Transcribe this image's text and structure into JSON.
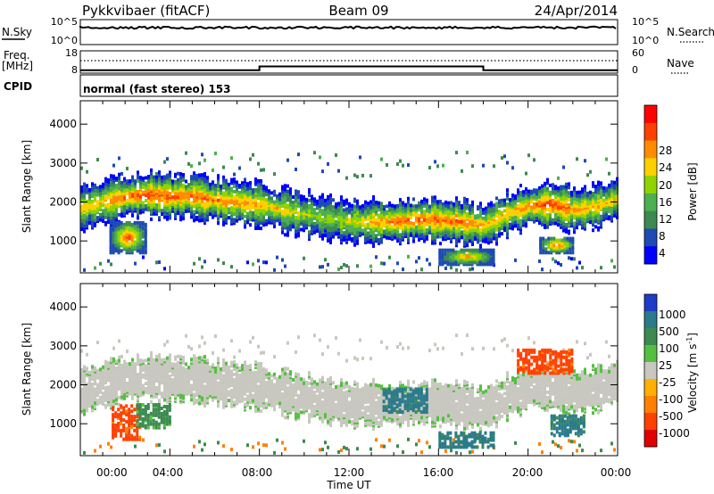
{
  "header": {
    "station": "Pykkvibaer (fitACF)",
    "beam": "Beam 09",
    "date": "24/Apr/2014"
  },
  "noise_panel": {
    "left_label": "N.Sky",
    "left_ticks": [
      "10^5",
      "10^0"
    ],
    "right_ticks": [
      "10^5",
      "10^0"
    ],
    "right_label": "N.Search"
  },
  "freq_panel": {
    "label_top": "Freq.",
    "label_unit": "[MHz]",
    "left_ticks": [
      "18",
      "8"
    ],
    "right_ticks": [
      "60",
      "0"
    ],
    "right_label": "Nave"
  },
  "cpid_panel": {
    "label": "CPID",
    "text": "normal (fast stereo) 153"
  },
  "time_axis": {
    "title": "Time UT",
    "ticks": [
      "00:00",
      "04:00",
      "08:00",
      "12:00",
      "16:00",
      "20:00",
      "00:00"
    ]
  },
  "range_axis": {
    "title": "Slant Range [km]",
    "ticks": [
      "1000",
      "2000",
      "3000",
      "4000"
    ]
  },
  "power_scale": {
    "title": "Power [dB]",
    "ticks": [
      "4",
      "8",
      "12",
      "16",
      "20",
      "24",
      "28"
    ],
    "colors": [
      "#0000ff",
      "#1e4ab4",
      "#3c8a50",
      "#4caf50",
      "#8fd400",
      "#ffd000",
      "#ff8c00",
      "#ff4000",
      "#ff0000"
    ]
  },
  "velocity_scale": {
    "title": "Velocity [m s",
    "title_sup": "-1",
    "title_close": "]",
    "ticks": [
      "1000",
      "500",
      "100",
      "25",
      "-25",
      "-100",
      "-500",
      "-1000"
    ],
    "colors": [
      "#1e3cc8",
      "#2a7a8a",
      "#3c8a50",
      "#55c040",
      "#c8c8c0",
      "#ffb000",
      "#ff8000",
      "#ff4000",
      "#e00000"
    ]
  },
  "chart_data": {
    "type": "heatmap",
    "title": "Pykkvibaer (fitACF)  Beam 09  24/Apr/2014",
    "xlabel": "Time UT",
    "ylabel": "Slant Range [km]",
    "xlim": [
      0,
      24
    ],
    "ylim": [
      180,
      4600
    ],
    "operating_frequency_mhz": [
      {
        "from": 0,
        "to": 8,
        "value": 9.3
      },
      {
        "from": 8,
        "to": 18,
        "value": 11.0
      },
      {
        "from": 18,
        "to": 24,
        "value": 9.3
      }
    ],
    "power_trace": [
      {
        "t": 0.0,
        "r": 1850,
        "peak_db": 20
      },
      {
        "t": 1.0,
        "r": 2000,
        "peak_db": 22
      },
      {
        "t": 2.0,
        "r": 2150,
        "peak_db": 26
      },
      {
        "t": 3.0,
        "r": 2200,
        "peak_db": 28
      },
      {
        "t": 4.0,
        "r": 2150,
        "peak_db": 26
      },
      {
        "t": 5.0,
        "r": 2150,
        "peak_db": 26
      },
      {
        "t": 6.0,
        "r": 2050,
        "peak_db": 24
      },
      {
        "t": 7.0,
        "r": 2000,
        "peak_db": 24
      },
      {
        "t": 8.0,
        "r": 1950,
        "peak_db": 22
      },
      {
        "t": 9.0,
        "r": 1800,
        "peak_db": 20
      },
      {
        "t": 10.0,
        "r": 1700,
        "peak_db": 18
      },
      {
        "t": 11.0,
        "r": 1600,
        "peak_db": 16
      },
      {
        "t": 12.0,
        "r": 1500,
        "peak_db": 18
      },
      {
        "t": 13.0,
        "r": 1500,
        "peak_db": 22
      },
      {
        "t": 14.0,
        "r": 1500,
        "peak_db": 26
      },
      {
        "t": 15.0,
        "r": 1550,
        "peak_db": 26
      },
      {
        "t": 16.0,
        "r": 1550,
        "peak_db": 26
      },
      {
        "t": 17.0,
        "r": 1500,
        "peak_db": 26
      },
      {
        "t": 18.0,
        "r": 1400,
        "peak_db": 22
      },
      {
        "t": 19.0,
        "r": 1700,
        "peak_db": 22
      },
      {
        "t": 20.0,
        "r": 1900,
        "peak_db": 24
      },
      {
        "t": 21.0,
        "r": 1950,
        "peak_db": 28
      },
      {
        "t": 22.0,
        "r": 1800,
        "peak_db": 24
      },
      {
        "t": 23.0,
        "r": 1900,
        "peak_db": 22
      },
      {
        "t": 24.0,
        "r": 2100,
        "peak_db": 20
      }
    ],
    "near_range_power": [
      {
        "t0": 1.3,
        "t1": 2.9,
        "r0": 700,
        "r1": 1500,
        "peak_db": 28
      },
      {
        "t0": 16.0,
        "t1": 18.5,
        "r0": 400,
        "r1": 800,
        "peak_db": 24
      },
      {
        "t0": 20.5,
        "t1": 22.0,
        "r0": 700,
        "r1": 1100,
        "peak_db": 28
      }
    ],
    "velocity_regions": [
      {
        "t0": 1.4,
        "t1": 2.7,
        "r0": 600,
        "r1": 1500,
        "velocity": -500
      },
      {
        "t0": 2.5,
        "t1": 4.0,
        "r0": 900,
        "r1": 1500,
        "velocity": 100
      },
      {
        "t0": 13.5,
        "t1": 15.5,
        "r0": 1300,
        "r1": 1900,
        "velocity": 500
      },
      {
        "t0": 16.0,
        "t1": 18.5,
        "r0": 400,
        "r1": 800,
        "velocity": 500
      },
      {
        "t0": 19.5,
        "t1": 22.0,
        "r0": 2300,
        "r1": 2900,
        "velocity": -500
      },
      {
        "t0": 21.0,
        "t1": 22.5,
        "r0": 700,
        "r1": 1200,
        "velocity": 500
      }
    ]
  }
}
